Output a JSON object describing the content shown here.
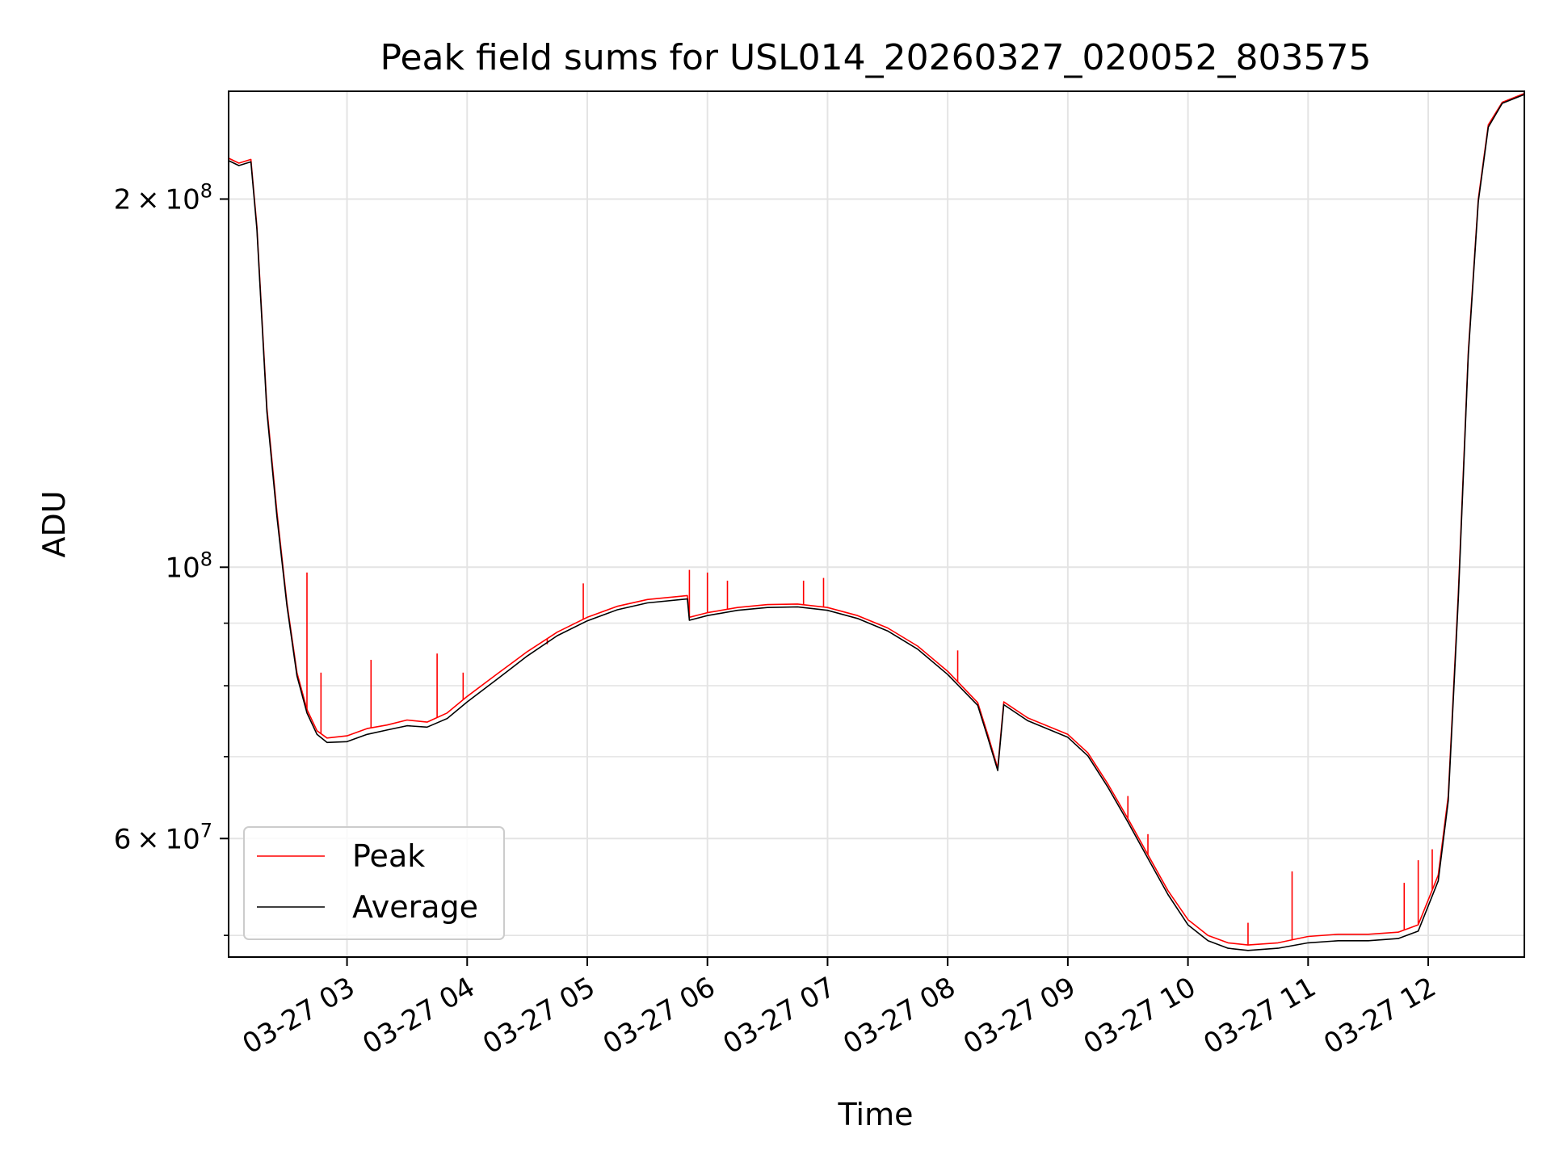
{
  "chart_data": {
    "type": "line",
    "title": "Peak field sums for USL014_20260327_020052_803575",
    "xlabel": "Time",
    "ylabel": "ADU",
    "x_axis": {
      "type": "time",
      "start": "2026-03-27T02:00:52",
      "end": "2026-03-27T12:48:00",
      "ticks": [
        {
          "time": "2026-03-27T03:00",
          "label": "03-27 03"
        },
        {
          "time": "2026-03-27T04:00",
          "label": "03-27 04"
        },
        {
          "time": "2026-03-27T05:00",
          "label": "03-27 05"
        },
        {
          "time": "2026-03-27T06:00",
          "label": "03-27 06"
        },
        {
          "time": "2026-03-27T07:00",
          "label": "03-27 07"
        },
        {
          "time": "2026-03-27T08:00",
          "label": "03-27 08"
        },
        {
          "time": "2026-03-27T09:00",
          "label": "03-27 09"
        },
        {
          "time": "2026-03-27T10:00",
          "label": "03-27 10"
        },
        {
          "time": "2026-03-27T11:00",
          "label": "03-27 11"
        },
        {
          "time": "2026-03-27T12:00",
          "label": "03-27 12"
        }
      ]
    },
    "y_axis": {
      "scale": "log",
      "ylim": [
        48000000,
        245000000
      ],
      "major_ticks": [
        {
          "value": 200000000,
          "mantissa": "2",
          "exponent": "8"
        },
        {
          "value": 100000000,
          "mantissa": "",
          "exponent": "8"
        },
        {
          "value": 60000000,
          "mantissa": "6",
          "exponent": "7"
        }
      ],
      "minor_ticks": [
        50000000,
        70000000,
        80000000,
        90000000
      ]
    },
    "grid": true,
    "legend": {
      "position": "lower-left"
    },
    "series": [
      {
        "name": "Peak",
        "color": "#ff0000",
        "points": [
          [
            "2026-03-27T02:00:52",
            216000000
          ],
          [
            "2026-03-27T02:06",
            214000000
          ],
          [
            "2026-03-27T02:12",
            215500000
          ],
          [
            "2026-03-27T02:15",
            190000000
          ],
          [
            "2026-03-27T02:20",
            135000000
          ],
          [
            "2026-03-27T02:25",
            111000000
          ],
          [
            "2026-03-27T02:30",
            93500000
          ],
          [
            "2026-03-27T02:35",
            82000000
          ],
          [
            "2026-03-27T02:40",
            76500000
          ],
          [
            "2026-03-27T02:45",
            73500000
          ],
          [
            "2026-03-27T02:50",
            72500000
          ],
          [
            "2026-03-27T03:00",
            72800000
          ],
          [
            "2026-03-27T03:10",
            73800000
          ],
          [
            "2026-03-27T03:20",
            74300000
          ],
          [
            "2026-03-27T03:30",
            75000000
          ],
          [
            "2026-03-27T03:40",
            74700000
          ],
          [
            "2026-03-27T03:50",
            76000000
          ],
          [
            "2026-03-27T04:00",
            78400000
          ],
          [
            "2026-03-27T04:15",
            81800000
          ],
          [
            "2026-03-27T04:30",
            85300000
          ],
          [
            "2026-03-27T04:45",
            88500000
          ],
          [
            "2026-03-27T05:00",
            91000000
          ],
          [
            "2026-03-27T05:15",
            92900000
          ],
          [
            "2026-03-27T05:30",
            94100000
          ],
          [
            "2026-03-27T05:50",
            94800000
          ],
          [
            "2026-03-27T05:51",
            91000000
          ],
          [
            "2026-03-27T06:00",
            91800000
          ],
          [
            "2026-03-27T06:15",
            92700000
          ],
          [
            "2026-03-27T06:30",
            93200000
          ],
          [
            "2026-03-27T06:45",
            93300000
          ],
          [
            "2026-03-27T07:00",
            92700000
          ],
          [
            "2026-03-27T07:15",
            91300000
          ],
          [
            "2026-03-27T07:30",
            89200000
          ],
          [
            "2026-03-27T07:45",
            86200000
          ],
          [
            "2026-03-27T08:00",
            82200000
          ],
          [
            "2026-03-27T08:15",
            77500000
          ],
          [
            "2026-03-27T08:20",
            73000000
          ],
          [
            "2026-03-27T08:25",
            68500000
          ],
          [
            "2026-03-27T08:28",
            77600000
          ],
          [
            "2026-03-27T08:40",
            75300000
          ],
          [
            "2026-03-27T09:00",
            73000000
          ],
          [
            "2026-03-27T09:10",
            70500000
          ],
          [
            "2026-03-27T09:20",
            66500000
          ],
          [
            "2026-03-27T09:30",
            62300000
          ],
          [
            "2026-03-27T09:40",
            58200000
          ],
          [
            "2026-03-27T09:50",
            54400000
          ],
          [
            "2026-03-27T10:00",
            51500000
          ],
          [
            "2026-03-27T10:10",
            50000000
          ],
          [
            "2026-03-27T10:20",
            49300000
          ],
          [
            "2026-03-27T10:30",
            49100000
          ],
          [
            "2026-03-27T10:45",
            49300000
          ],
          [
            "2026-03-27T11:00",
            49900000
          ],
          [
            "2026-03-27T11:15",
            50100000
          ],
          [
            "2026-03-27T11:30",
            50100000
          ],
          [
            "2026-03-27T11:45",
            50300000
          ],
          [
            "2026-03-27T11:55",
            51000000
          ],
          [
            "2026-03-27T12:05",
            56000000
          ],
          [
            "2026-03-27T12:10",
            65000000
          ],
          [
            "2026-03-27T12:15",
            95000000
          ],
          [
            "2026-03-27T12:20",
            150000000
          ],
          [
            "2026-03-27T12:25",
            200000000
          ],
          [
            "2026-03-27T12:30",
            230000000
          ],
          [
            "2026-03-27T12:37",
            240000000
          ],
          [
            "2026-03-27T12:48",
            244000000
          ]
        ],
        "spikes": [
          [
            "2026-03-27T02:40",
            99000000
          ],
          [
            "2026-03-27T02:47",
            82000000
          ],
          [
            "2026-03-27T03:12",
            84000000
          ],
          [
            "2026-03-27T03:45",
            85000000
          ],
          [
            "2026-03-27T03:58",
            82000000
          ],
          [
            "2026-03-27T04:40",
            86500000
          ],
          [
            "2026-03-27T04:58",
            97000000
          ],
          [
            "2026-03-27T05:51",
            99500000
          ],
          [
            "2026-03-27T06:00",
            99000000
          ],
          [
            "2026-03-27T06:10",
            97500000
          ],
          [
            "2026-03-27T06:48",
            97500000
          ],
          [
            "2026-03-27T06:58",
            98000000
          ],
          [
            "2026-03-27T08:05",
            85500000
          ],
          [
            "2026-03-27T09:30",
            65000000
          ],
          [
            "2026-03-27T09:40",
            60500000
          ],
          [
            "2026-03-27T10:30",
            51200000
          ],
          [
            "2026-03-27T10:52",
            56400000
          ],
          [
            "2026-03-27T11:48",
            55200000
          ],
          [
            "2026-03-27T11:55",
            57600000
          ],
          [
            "2026-03-27T12:02",
            58800000
          ]
        ]
      },
      {
        "name": "Average",
        "color": "#000000",
        "points": [
          [
            "2026-03-27T02:00:52",
            215000000
          ],
          [
            "2026-03-27T02:06",
            213000000
          ],
          [
            "2026-03-27T02:12",
            214500000
          ],
          [
            "2026-03-27T02:15",
            189000000
          ],
          [
            "2026-03-27T02:20",
            134000000
          ],
          [
            "2026-03-27T02:25",
            110000000
          ],
          [
            "2026-03-27T02:30",
            93000000
          ],
          [
            "2026-03-27T02:35",
            81500000
          ],
          [
            "2026-03-27T02:40",
            76000000
          ],
          [
            "2026-03-27T02:45",
            73000000
          ],
          [
            "2026-03-27T02:50",
            71900000
          ],
          [
            "2026-03-27T03:00",
            72000000
          ],
          [
            "2026-03-27T03:10",
            73000000
          ],
          [
            "2026-03-27T03:20",
            73600000
          ],
          [
            "2026-03-27T03:30",
            74200000
          ],
          [
            "2026-03-27T03:40",
            74000000
          ],
          [
            "2026-03-27T03:50",
            75200000
          ],
          [
            "2026-03-27T04:00",
            77600000
          ],
          [
            "2026-03-27T04:15",
            81000000
          ],
          [
            "2026-03-27T04:30",
            84600000
          ],
          [
            "2026-03-27T04:45",
            87900000
          ],
          [
            "2026-03-27T05:00",
            90400000
          ],
          [
            "2026-03-27T05:15",
            92300000
          ],
          [
            "2026-03-27T05:30",
            93500000
          ],
          [
            "2026-03-27T05:50",
            94200000
          ],
          [
            "2026-03-27T05:51",
            90500000
          ],
          [
            "2026-03-27T06:00",
            91300000
          ],
          [
            "2026-03-27T06:15",
            92200000
          ],
          [
            "2026-03-27T06:30",
            92700000
          ],
          [
            "2026-03-27T06:45",
            92800000
          ],
          [
            "2026-03-27T07:00",
            92200000
          ],
          [
            "2026-03-27T07:15",
            90800000
          ],
          [
            "2026-03-27T07:30",
            88700000
          ],
          [
            "2026-03-27T07:45",
            85700000
          ],
          [
            "2026-03-27T08:00",
            81700000
          ],
          [
            "2026-03-27T08:15",
            77100000
          ],
          [
            "2026-03-27T08:20",
            72600000
          ],
          [
            "2026-03-27T08:25",
            68200000
          ],
          [
            "2026-03-27T08:28",
            77200000
          ],
          [
            "2026-03-27T08:40",
            74900000
          ],
          [
            "2026-03-27T09:00",
            72600000
          ],
          [
            "2026-03-27T09:10",
            70100000
          ],
          [
            "2026-03-27T09:20",
            66100000
          ],
          [
            "2026-03-27T09:30",
            61900000
          ],
          [
            "2026-03-27T09:40",
            57800000
          ],
          [
            "2026-03-27T09:50",
            54000000
          ],
          [
            "2026-03-27T10:00",
            51000000
          ],
          [
            "2026-03-27T10:10",
            49500000
          ],
          [
            "2026-03-27T10:20",
            48800000
          ],
          [
            "2026-03-27T10:30",
            48600000
          ],
          [
            "2026-03-27T10:45",
            48800000
          ],
          [
            "2026-03-27T11:00",
            49300000
          ],
          [
            "2026-03-27T11:15",
            49500000
          ],
          [
            "2026-03-27T11:30",
            49500000
          ],
          [
            "2026-03-27T11:45",
            49700000
          ],
          [
            "2026-03-27T11:55",
            50400000
          ],
          [
            "2026-03-27T12:05",
            55400000
          ],
          [
            "2026-03-27T12:10",
            64400000
          ],
          [
            "2026-03-27T12:15",
            94000000
          ],
          [
            "2026-03-27T12:20",
            149000000
          ],
          [
            "2026-03-27T12:25",
            199000000
          ],
          [
            "2026-03-27T12:30",
            229000000
          ],
          [
            "2026-03-27T12:37",
            239500000
          ],
          [
            "2026-03-27T12:48",
            243500000
          ]
        ]
      }
    ]
  }
}
